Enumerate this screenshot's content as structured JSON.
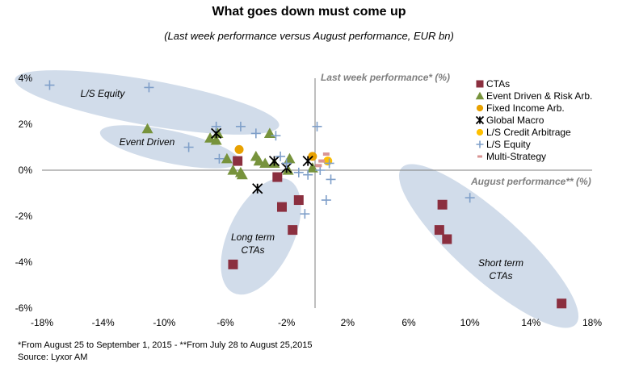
{
  "title": "What goes down must come up",
  "subtitle": "(Last week performance versus August performance, EUR bn)",
  "footnote": "*From August 25 to September 1, 2015 - **From July 28 to August 25,2015",
  "source": "Source: Lyxor AM",
  "chart_data": {
    "type": "scatter",
    "xlabel": "August performance** (%)",
    "ylabel": "Last week performance* (%)",
    "xlim": [
      -18,
      18
    ],
    "ylim": [
      -6,
      4
    ],
    "x_ticks": [
      "-18%",
      "-14%",
      "-10%",
      "-6%",
      "-2%",
      "2%",
      "6%",
      "10%",
      "14%",
      "18%"
    ],
    "y_ticks": [
      "4%",
      "2%",
      "0%",
      "-2%",
      "-4%",
      "-6%"
    ],
    "grid": false,
    "legend_position": "top-right",
    "annotations": [
      "L/S Equity",
      "Event Driven",
      "Long term CTAs",
      "Short term CTAs"
    ],
    "series": [
      {
        "name": "CTAs",
        "marker": "square",
        "color": "#8b2f3f",
        "x": [
          -5.5,
          -5.2,
          -2.6,
          -2.3,
          -1.6,
          -1.2,
          8.0,
          8.2,
          8.5,
          16.0
        ],
        "y": [
          -4.1,
          0.4,
          -0.3,
          -1.6,
          -2.6,
          -1.3,
          -2.6,
          -1.5,
          -3.0,
          -5.8
        ]
      },
      {
        "name": "Event Driven & Risk Arb.",
        "marker": "triangle",
        "color": "#77933c",
        "x": [
          -11.1,
          -7.0,
          -6.6,
          -6.5,
          -5.9,
          -5.5,
          -5.0,
          -4.9,
          -4.0,
          -3.8,
          -3.4,
          -3.1,
          -2.8,
          -1.9,
          -1.8,
          -0.3
        ],
        "y": [
          1.8,
          1.4,
          1.3,
          1.6,
          0.5,
          0.0,
          -0.1,
          -0.2,
          0.6,
          0.4,
          0.3,
          1.6,
          0.3,
          0.0,
          0.5,
          0.1
        ]
      },
      {
        "name": "Fixed Income Arb.",
        "marker": "circle",
        "color": "#e8a100",
        "x": [
          -5.1,
          -0.3
        ],
        "y": [
          0.9,
          0.6
        ]
      },
      {
        "name": "Global Macro",
        "marker": "asterisk",
        "color": "#000000",
        "x": [
          -6.6,
          -3.9,
          -2.8,
          -2.0,
          -0.6
        ],
        "y": [
          1.6,
          -0.8,
          0.4,
          0.1,
          0.4
        ]
      },
      {
        "name": "L/S Credit Arbitrage",
        "marker": "circle",
        "color": "#ffc000",
        "x": [
          0.7
        ],
        "y": [
          0.4
        ]
      },
      {
        "name": "L/S Equity",
        "marker": "plus",
        "color": "#7f9fc9",
        "x": [
          -17.5,
          -11.0,
          -8.4,
          -6.6,
          -6.4,
          -5.0,
          -4.0,
          -2.7,
          -2.4,
          -2.0,
          -1.2,
          -0.8,
          -0.6,
          0.0,
          0.2,
          0.6,
          0.8,
          0.9,
          10.0
        ],
        "y": [
          3.7,
          3.6,
          1.0,
          1.9,
          0.5,
          1.9,
          1.6,
          1.5,
          0.6,
          0.3,
          -0.1,
          -1.9,
          -0.2,
          1.9,
          0.0,
          -1.3,
          0.3,
          -0.4,
          -1.2
        ]
      },
      {
        "name": "Multi-Strategy",
        "marker": "dash",
        "color": "#d99594",
        "x": [
          0.6,
          0.3,
          0.1
        ],
        "y": [
          0.7,
          0.4,
          0.2
        ]
      }
    ]
  }
}
